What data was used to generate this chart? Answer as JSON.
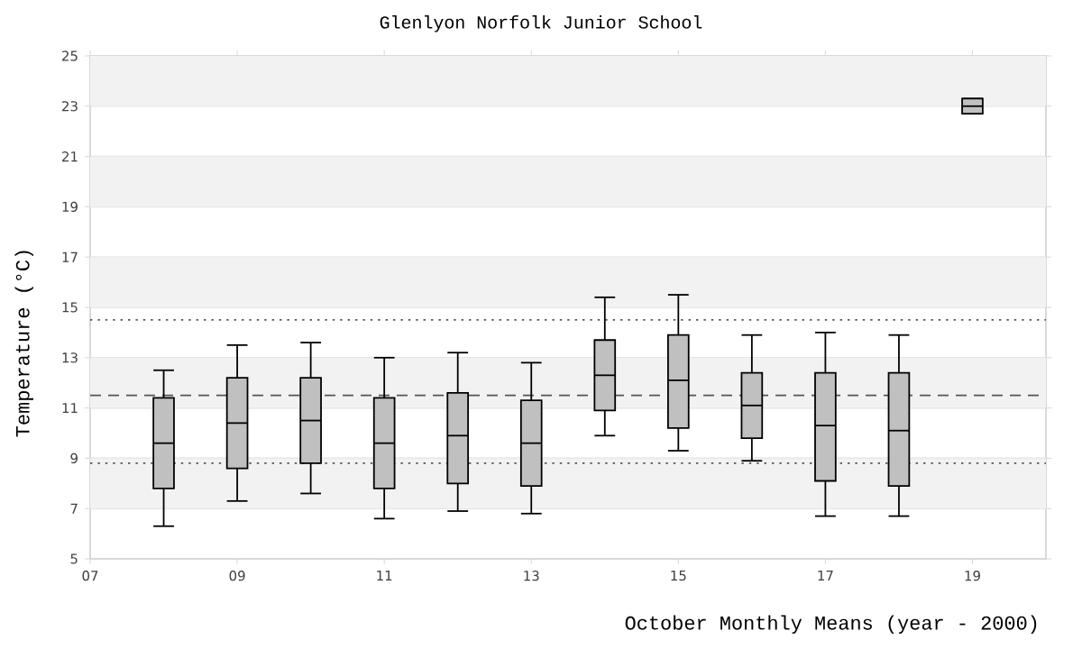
{
  "chart_data": {
    "type": "box",
    "title": "Glenlyon Norfolk Junior School",
    "xlabel": "October Monthly Means (year - 2000)",
    "ylabel": "Temperature (°C)",
    "x": [
      8,
      9,
      10,
      11,
      12,
      13,
      14,
      15,
      16,
      17,
      18,
      19
    ],
    "color": "#c0c0c0",
    "boxes": [
      {
        "low": 6.3,
        "q1": 7.8,
        "median": 9.6,
        "q3": 11.4,
        "high": 12.5
      },
      {
        "low": 7.3,
        "q1": 8.6,
        "median": 10.4,
        "q3": 12.2,
        "high": 13.5
      },
      {
        "low": 7.6,
        "q1": 8.8,
        "median": 10.5,
        "q3": 12.2,
        "high": 13.6
      },
      {
        "low": 6.6,
        "q1": 7.8,
        "median": 9.6,
        "q3": 11.4,
        "high": 13.0
      },
      {
        "low": 6.9,
        "q1": 8.0,
        "median": 9.9,
        "q3": 11.6,
        "high": 13.2
      },
      {
        "low": 6.8,
        "q1": 7.9,
        "median": 9.6,
        "q3": 11.3,
        "high": 12.8
      },
      {
        "low": 9.9,
        "q1": 10.9,
        "median": 12.3,
        "q3": 13.7,
        "high": 15.4
      },
      {
        "low": 9.3,
        "q1": 10.2,
        "median": 12.1,
        "q3": 13.9,
        "high": 15.5
      },
      {
        "low": 8.9,
        "q1": 9.8,
        "median": 11.1,
        "q3": 12.4,
        "high": 13.9
      },
      {
        "low": 6.7,
        "q1": 8.1,
        "median": 10.3,
        "q3": 12.4,
        "high": 14.0
      },
      {
        "low": 6.7,
        "q1": 7.9,
        "median": 10.1,
        "q3": 12.4,
        "high": 13.9
      },
      {
        "low": 22.7,
        "q1": 22.7,
        "median": 23.0,
        "q3": 23.3,
        "high": 23.3
      }
    ],
    "xlim": [
      7,
      20
    ],
    "xticks": [
      {
        "value": 7,
        "label": "07"
      },
      {
        "value": 9,
        "label": "09"
      },
      11,
      13,
      15,
      17,
      19
    ],
    "ylim": [
      5,
      25
    ],
    "yticks": [
      5,
      7,
      9,
      11,
      13,
      15,
      17,
      19,
      21,
      23,
      25
    ],
    "grid": "y",
    "ref_lines": [
      {
        "axis": "y",
        "value": 14.5,
        "line_style": "dotted",
        "color": "#555555"
      },
      {
        "axis": "y",
        "value": 11.5,
        "line_style": "dashed",
        "color": "#555555"
      },
      {
        "axis": "y",
        "value": 8.8,
        "line_style": "dotted",
        "color": "#555555"
      }
    ]
  }
}
